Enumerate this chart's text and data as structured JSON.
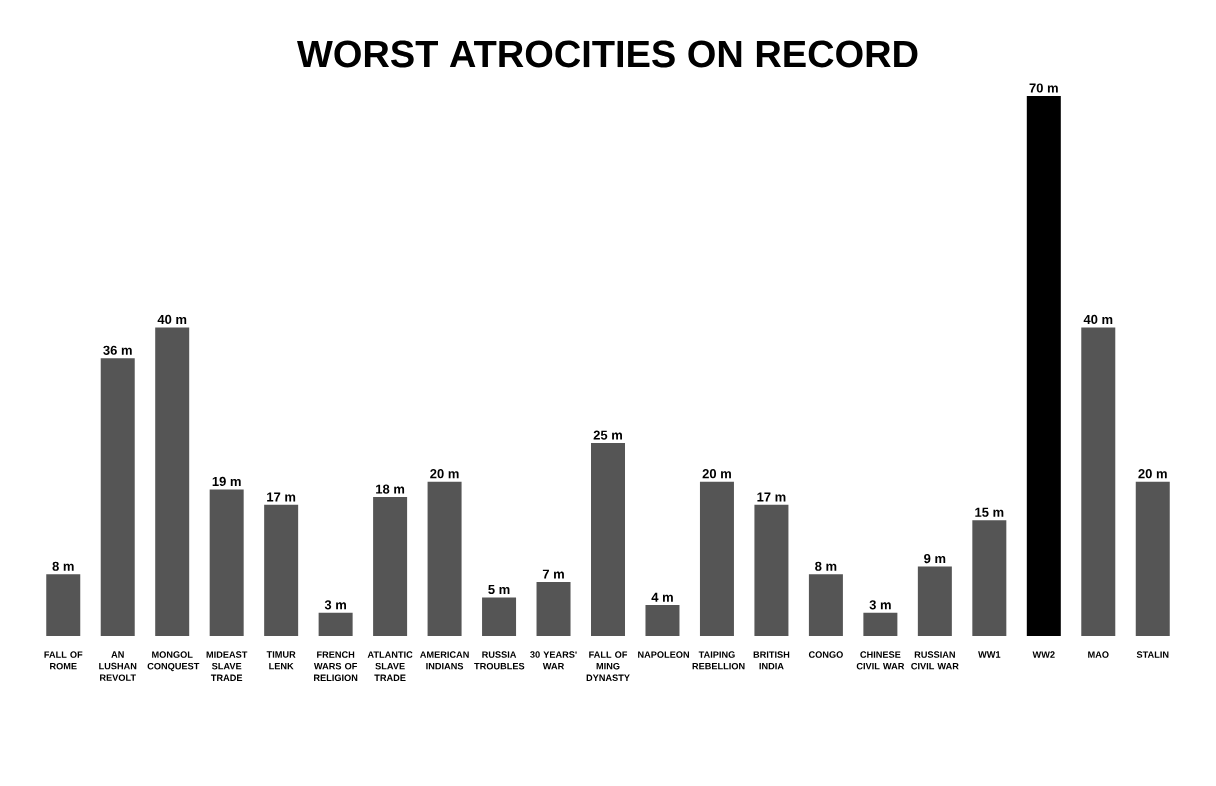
{
  "chart_data": {
    "type": "bar",
    "title": "WORST ATROCITIES ON RECORD",
    "categories": [
      "FALL OF ROME",
      "AN LUSHAN REVOLT",
      "MONGOL CONQUEST",
      "MIDEAST SLAVE TRADE",
      "TIMUR LENK",
      "FRENCH WARS OF RELIGION",
      "ATLANTIC SLAVE TRADE",
      "AMERICAN INDIANS",
      "RUSSIA TROUBLES",
      "30 YEARS' WAR",
      "FALL OF MING DYNASTY",
      "NAPOLEON",
      "TAIPING REBELLION",
      "BRITISH INDIA",
      "CONGO",
      "CHINESE CIVIL WAR",
      "RUSSIAN CIVIL WAR",
      "WW1",
      "WW2",
      "MAO",
      "STALIN"
    ],
    "values": [
      8,
      36,
      40,
      19,
      17,
      3,
      18,
      20,
      5,
      7,
      25,
      4,
      20,
      17,
      8,
      3,
      9,
      15,
      70,
      40,
      20
    ],
    "value_labels": [
      "8 m",
      "36 m",
      "40 m",
      "19 m",
      "17 m",
      "3 m",
      "18 m",
      "20 m",
      "5 m",
      "7 m",
      "25 m",
      "4 m",
      "20 m",
      "17 m",
      "8 m",
      "3 m",
      "9 m",
      "15 m",
      "70 m",
      "40 m",
      "20 m"
    ],
    "colors": [
      "#555555",
      "#555555",
      "#555555",
      "#555555",
      "#555555",
      "#555555",
      "#555555",
      "#555555",
      "#555555",
      "#555555",
      "#555555",
      "#555555",
      "#555555",
      "#555555",
      "#555555",
      "#555555",
      "#555555",
      "#555555",
      "#000000",
      "#555555",
      "#555555"
    ]
  }
}
